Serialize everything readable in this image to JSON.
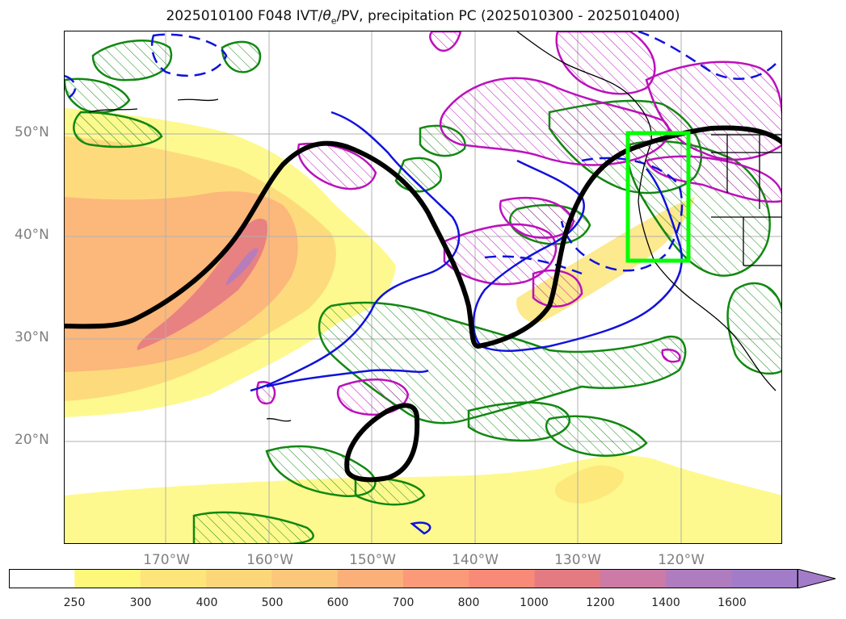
{
  "title_prefix": "2025010100 F048 IVT/",
  "title_theta": "θ",
  "title_sub": "e",
  "title_suffix": "/PV, precipitation PC (2025010300 - 2025010400)",
  "latitude_labels": [
    "50°N",
    "40°N",
    "30°N",
    "20°N"
  ],
  "longitude_labels": [
    "170°W",
    "160°W",
    "150°W",
    "140°W",
    "130°W",
    "120°W"
  ],
  "colorbar": {
    "ticks": [
      "250",
      "300",
      "400",
      "500",
      "600",
      "700",
      "800",
      "1000",
      "1200",
      "1400",
      "1600"
    ],
    "colors": [
      "#ffffff",
      "#fdf87a",
      "#fde57a",
      "#fdd67a",
      "#fcc77a",
      "#fbb07a",
      "#fb9a78",
      "#f98a78",
      "#e57b82",
      "#cc7aa6",
      "#b07cc0",
      "#a27cc8"
    ]
  },
  "map": {
    "highlight_box_color": "#00ff00",
    "contour_colors": {
      "green": "#118811",
      "blue": "#1111dd",
      "magenta": "#bb11bb",
      "black": "#000000"
    }
  }
}
